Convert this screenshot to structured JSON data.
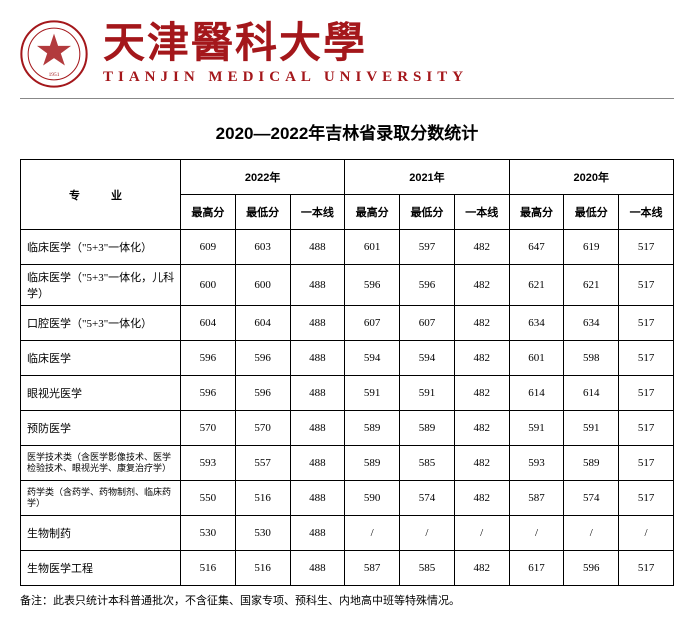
{
  "header": {
    "cn_name": "天津醫科大學",
    "en_name": "TIANJIN MEDICAL UNIVERSITY",
    "logo_color": "#a4171b"
  },
  "title": "2020—2022年吉林省录取分数统计",
  "table": {
    "major_header": "专　业",
    "year_groups": [
      "2022年",
      "2021年",
      "2020年"
    ],
    "sub_headers": [
      "最高分",
      "最低分",
      "一本线"
    ],
    "rows": [
      {
        "major": "临床医学（\"5+3\"一体化）",
        "small": false,
        "cells": [
          "609",
          "603",
          "488",
          "601",
          "597",
          "482",
          "647",
          "619",
          "517"
        ]
      },
      {
        "major": "临床医学（\"5+3\"一体化，儿科学）",
        "small": false,
        "cells": [
          "600",
          "600",
          "488",
          "596",
          "596",
          "482",
          "621",
          "621",
          "517"
        ]
      },
      {
        "major": "口腔医学（\"5+3\"一体化）",
        "small": false,
        "cells": [
          "604",
          "604",
          "488",
          "607",
          "607",
          "482",
          "634",
          "634",
          "517"
        ]
      },
      {
        "major": "临床医学",
        "small": false,
        "cells": [
          "596",
          "596",
          "488",
          "594",
          "594",
          "482",
          "601",
          "598",
          "517"
        ]
      },
      {
        "major": "眼视光医学",
        "small": false,
        "cells": [
          "596",
          "596",
          "488",
          "591",
          "591",
          "482",
          "614",
          "614",
          "517"
        ]
      },
      {
        "major": "预防医学",
        "small": false,
        "cells": [
          "570",
          "570",
          "488",
          "589",
          "589",
          "482",
          "591",
          "591",
          "517"
        ]
      },
      {
        "major": "医学技术类（含医学影像技术、医学检验技术、眼视光学、康复治疗学）",
        "small": true,
        "cells": [
          "593",
          "557",
          "488",
          "589",
          "585",
          "482",
          "593",
          "589",
          "517"
        ]
      },
      {
        "major": "药学类（含药学、药物制剂、临床药学）",
        "small": true,
        "cells": [
          "550",
          "516",
          "488",
          "590",
          "574",
          "482",
          "587",
          "574",
          "517"
        ]
      },
      {
        "major": "生物制药",
        "small": false,
        "cells": [
          "530",
          "530",
          "488",
          "/",
          "/",
          "/",
          "/",
          "/",
          "/"
        ]
      },
      {
        "major": "生物医学工程",
        "small": false,
        "cells": [
          "516",
          "516",
          "488",
          "587",
          "585",
          "482",
          "617",
          "596",
          "517"
        ]
      }
    ]
  },
  "note": "备注：此表只统计本科普通批次，不含征集、国家专项、预科生、内地高中班等特殊情况。"
}
